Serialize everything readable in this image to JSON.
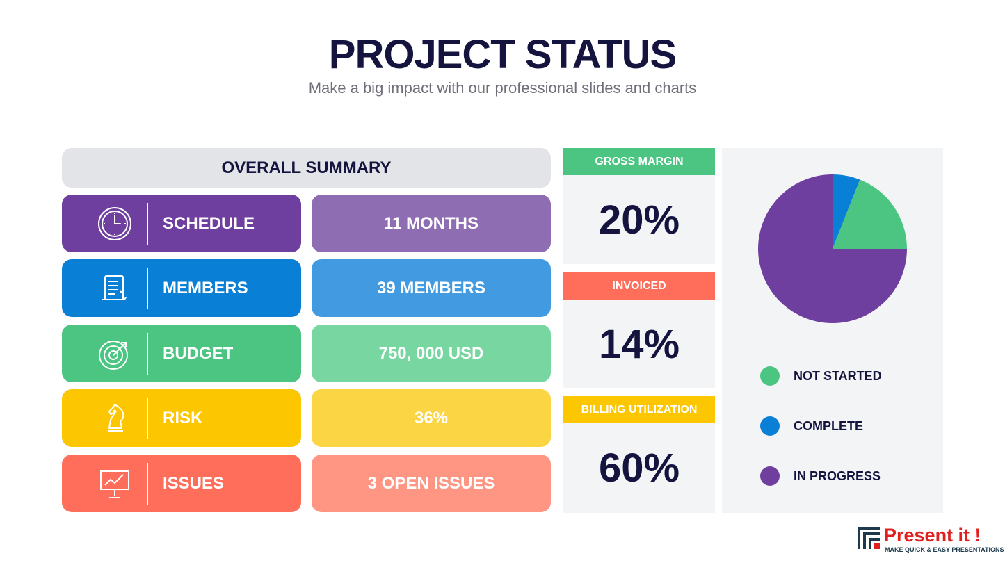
{
  "header": {
    "title": "PROJECT STATUS",
    "subtitle": "Make a big impact with our professional slides and charts"
  },
  "summary": {
    "title": "OVERALL SUMMARY",
    "rows": [
      {
        "label": "SCHEDULE",
        "value": "11 MONTHS",
        "icon": "clock-icon",
        "color": "#6e3f9e",
        "value_color": "#8e6db3"
      },
      {
        "label": "MEMBERS",
        "value": "39 MEMBERS",
        "icon": "checklist-scroll-icon",
        "color": "#0a7fd6",
        "value_color": "#429be0"
      },
      {
        "label": "BUDGET",
        "value": "750, 000 USD",
        "icon": "target-icon",
        "color": "#4cc582",
        "value_color": "#78d6a0"
      },
      {
        "label": "RISK",
        "value": "36%",
        "icon": "chess-knight-icon",
        "color": "#fcc600",
        "value_color": "#fcd545"
      },
      {
        "label": "ISSUES",
        "value": "3 OPEN ISSUES",
        "icon": "presentation-chart-icon",
        "color": "#ff6e5b",
        "value_color": "#ff9684"
      }
    ]
  },
  "metrics": [
    {
      "label": "GROSS MARGIN",
      "value": "20%",
      "color": "#4cc582"
    },
    {
      "label": "INVOICED",
      "value": "14%",
      "color": "#ff6e5b"
    },
    {
      "label": "BILLING UTILIZATION",
      "value": "60%",
      "color": "#fcc600"
    }
  ],
  "chart_data": {
    "type": "pie",
    "series": [
      {
        "name": "NOT STARTED",
        "value": 19,
        "color": "#4cc582"
      },
      {
        "name": "COMPLETE",
        "value": 6,
        "color": "#0a7fd6"
      },
      {
        "name": "IN PROGRESS",
        "value": 75,
        "color": "#6e3f9e"
      }
    ],
    "legend": "bottom"
  },
  "logo": {
    "name": "Present it !",
    "tagline": "MAKE QUICK & EASY PRESENTATIONS"
  }
}
